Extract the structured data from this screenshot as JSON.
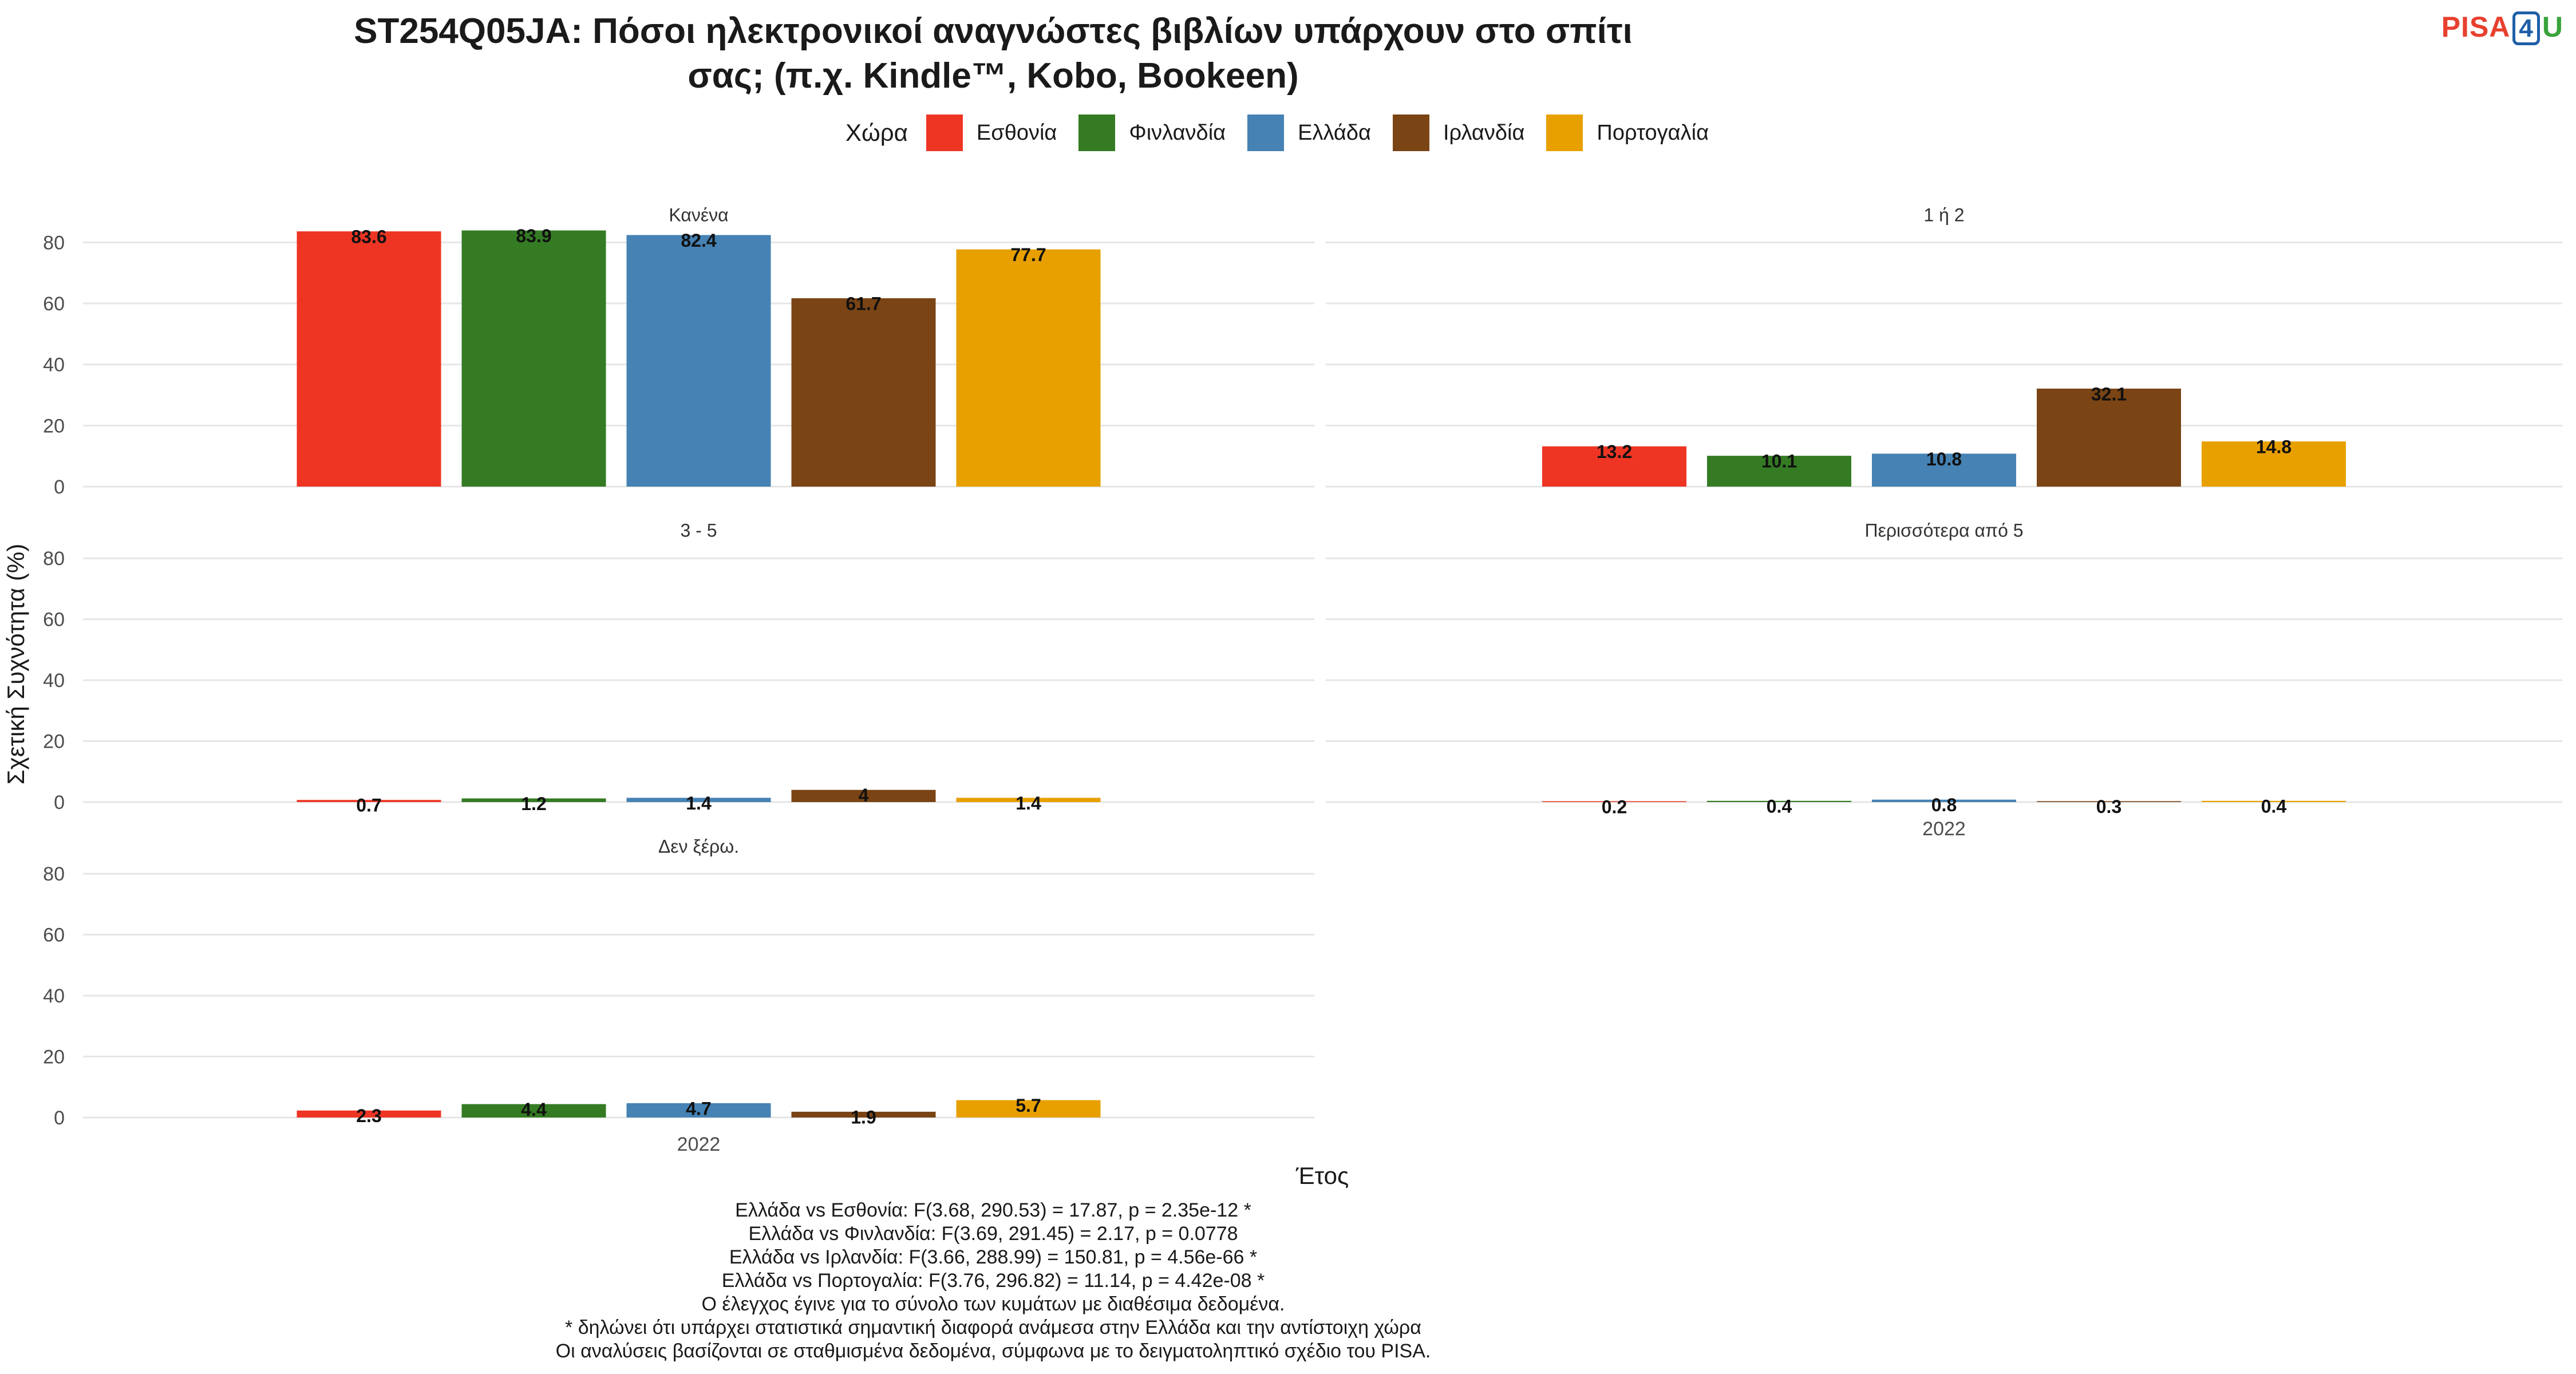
{
  "title_line1": "ST254Q05JA: Πόσοι ηλεκτρονικοί αναγνώστες βιβλίων υπάρχουν στο σπίτι",
  "title_line2": "σας; (π.χ. Kindle™, Kobo, Bookeen)",
  "logo": {
    "part1": "PISA",
    "part2": "4",
    "part3": "U"
  },
  "legend_title": "Χώρα",
  "colors": [
    "#EE3524",
    "#347B23",
    "#4682B4",
    "#7A4414",
    "#E8A000"
  ],
  "caption_lines": [
    "Ελλάδα vs Εσθονία: F(3.68, 290.53) = 17.87, p = 2.35e-12 *",
    "Ελλάδα vs Φινλανδία: F(3.69, 291.45) = 2.17, p = 0.0778",
    "Ελλάδα vs Ιρλανδία: F(3.66, 288.99) = 150.81, p = 4.56e-66 *",
    "Ελλάδα vs Πορτογαλία: F(3.76, 296.82) = 11.14, p = 4.42e-08 *",
    "Ο έλεγχος έγινε για το σύνολο των κυμάτων με διαθέσιμα δεδομένα.",
    "* δηλώνει ότι υπάρχει στατιστικά σημαντική διαφορά ανάμεσα στην Ελλάδα και την αντίστοιχη χώρα",
    "Οι αναλύσεις βασίζονται σε σταθμισμένα δεδομένα, σύμφωνα με το δειγματοληπτικό σχέδιο του PISA."
  ],
  "chart_data": {
    "type": "bar",
    "ylabel": "Σχετική Συχνότητα (%)",
    "xlabel": "Έτος",
    "x": "2022",
    "ylim": [
      0,
      90
    ],
    "yticks": [
      0,
      20,
      40,
      60,
      80
    ],
    "grid": true,
    "legend_position": "top",
    "series_names": [
      "Εσθονία",
      "Φινλανδία",
      "Ελλάδα",
      "Ιρλανδία",
      "Πορτογαλία"
    ],
    "panels": [
      {
        "name": "Κανένα",
        "values": [
          83.6,
          83.9,
          82.4,
          61.7,
          77.7
        ],
        "labels": [
          "83.6",
          "83.9",
          "82.4",
          "61.7",
          "77.7"
        ]
      },
      {
        "name": "1 ή 2",
        "values": [
          13.2,
          10.1,
          10.8,
          32.1,
          14.8
        ],
        "labels": [
          "13.2",
          "10.1",
          "10.8",
          "32.1",
          "14.8"
        ]
      },
      {
        "name": "3 - 5",
        "values": [
          0.7,
          1.2,
          1.4,
          4,
          1.4
        ],
        "labels": [
          "0.7",
          "1.2",
          "1.4",
          "4",
          "1.4"
        ]
      },
      {
        "name": "Περισσότερα από 5",
        "values": [
          0.2,
          0.4,
          0.8,
          0.3,
          0.4
        ],
        "labels": [
          "0.2",
          "0.4",
          "0.8",
          "0.3",
          "0.4"
        ]
      },
      {
        "name": "Δεν ξέρω.",
        "values": [
          2.3,
          4.4,
          4.7,
          1.9,
          5.7
        ],
        "labels": [
          "2.3",
          "4.4",
          "4.7",
          "1.9",
          "5.7"
        ]
      }
    ]
  }
}
